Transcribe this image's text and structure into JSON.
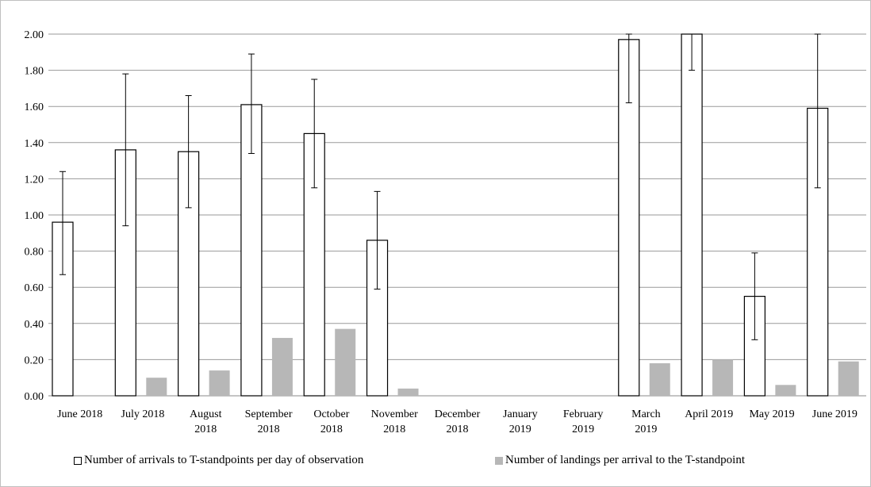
{
  "chart_data": {
    "type": "bar",
    "title": "",
    "xlabel": "",
    "ylabel": "",
    "ylim": [
      0,
      2.0
    ],
    "yticks": [
      "0.00",
      "0.20",
      "0.40",
      "0.60",
      "0.80",
      "1.00",
      "1.20",
      "1.40",
      "1.60",
      "1.80",
      "2.00"
    ],
    "grid": true,
    "legend_position": "bottom",
    "categories": [
      [
        "June 2018"
      ],
      [
        "July 2018"
      ],
      [
        "August",
        "2018"
      ],
      [
        "September",
        "2018"
      ],
      [
        "October",
        "2018"
      ],
      [
        "November",
        "2018"
      ],
      [
        "December",
        "2018"
      ],
      [
        "January",
        "2019"
      ],
      [
        "February",
        "2019"
      ],
      [
        "March",
        "2019"
      ],
      [
        "April 2019"
      ],
      [
        "May 2019"
      ],
      [
        "June 2019"
      ]
    ],
    "series": [
      {
        "name": "Number of arrivals to T-standpoints per day of observation",
        "style": "outline",
        "color": "#000000",
        "values": [
          0.96,
          1.36,
          1.35,
          1.61,
          1.45,
          0.86,
          null,
          null,
          null,
          1.97,
          2.0,
          0.55,
          1.59
        ],
        "error_low": [
          0.67,
          0.94,
          1.04,
          1.34,
          1.15,
          0.59,
          null,
          null,
          null,
          1.62,
          1.8,
          0.31,
          1.15
        ],
        "error_high": [
          1.24,
          1.78,
          1.66,
          1.89,
          1.75,
          1.13,
          null,
          null,
          null,
          2.0,
          2.0,
          0.79,
          2.0
        ]
      },
      {
        "name": "Number of landings per arrival to the T-standpoint",
        "style": "filled",
        "color": "#b7b7b7",
        "values": [
          null,
          0.1,
          0.14,
          0.32,
          0.37,
          0.04,
          null,
          null,
          null,
          0.18,
          0.2,
          0.06,
          0.19
        ]
      }
    ]
  }
}
